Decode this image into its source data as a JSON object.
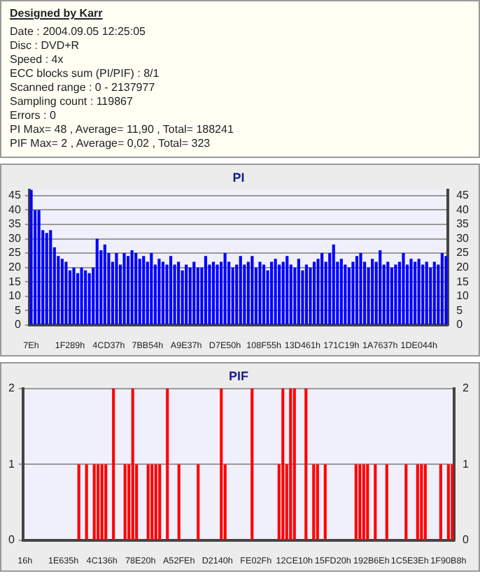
{
  "chart_data": [
    {
      "type": "other",
      "title": "Designed by Karr",
      "annotations": [
        "Date : 2004.09.05 12:25:05",
        "Disc : DVD+R",
        "Speed : 4x",
        "ECC blocks sum (PI/PIF) : 8/1",
        "Scanned range : 0 - 2137977",
        "Sampling count : 119867",
        "Errors : 0",
        "PI Max= 48 , Average= 11,90 , Total= 188241",
        "PIF Max= 2 , Average= 0,02 , Total= 323"
      ]
    },
    {
      "type": "bar",
      "title": "PI",
      "categories": [
        "7Eh",
        null,
        null,
        null,
        null,
        null,
        null,
        null,
        null,
        null,
        "1F289h",
        null,
        null,
        null,
        null,
        null,
        null,
        null,
        null,
        null,
        "4CD37h",
        null,
        null,
        null,
        null,
        null,
        null,
        null,
        null,
        null,
        "7BB54h",
        null,
        null,
        null,
        null,
        null,
        null,
        null,
        null,
        null,
        "A9E37h",
        null,
        null,
        null,
        null,
        null,
        null,
        null,
        null,
        null,
        "D7E50h",
        null,
        null,
        null,
        null,
        null,
        null,
        null,
        null,
        null,
        "108F55h",
        null,
        null,
        null,
        null,
        null,
        null,
        null,
        null,
        null,
        "13D461h",
        null,
        null,
        null,
        null,
        null,
        null,
        null,
        null,
        null,
        "171C19h",
        null,
        null,
        null,
        null,
        null,
        null,
        null,
        null,
        null,
        "1A7637h",
        null,
        null,
        null,
        null,
        null,
        null,
        null,
        null,
        null,
        "1DE044h",
        null,
        null,
        null,
        null,
        null,
        null,
        null
      ],
      "series": [
        {
          "color": "#0000ff",
          "values": [
            47,
            40,
            40,
            33,
            32,
            33,
            27,
            24,
            23,
            22,
            19,
            20,
            18,
            20,
            19,
            18,
            20,
            30,
            26,
            28,
            25,
            22,
            25,
            21,
            25,
            24,
            26,
            25,
            23,
            24,
            22,
            25,
            21,
            23,
            22,
            21,
            24,
            21,
            22,
            19,
            21,
            20,
            22,
            20,
            20,
            24,
            21,
            22,
            21,
            22,
            25,
            22,
            20,
            21,
            24,
            21,
            22,
            24,
            20,
            22,
            21,
            19,
            22,
            23,
            21,
            22,
            24,
            21,
            20,
            23,
            19,
            21,
            20,
            22,
            23,
            25,
            22,
            25,
            28,
            22,
            23,
            21,
            20,
            22,
            24,
            25,
            22,
            20,
            23,
            22,
            26,
            21,
            22,
            20,
            21,
            22,
            25,
            21,
            23,
            22,
            23,
            21,
            22,
            20,
            22,
            21,
            25,
            24
          ]
        }
      ],
      "ylim": [
        0,
        47
      ],
      "yticks": [
        0,
        5,
        10,
        15,
        20,
        25,
        30,
        35,
        40,
        45
      ],
      "y2lim": [
        0,
        47
      ],
      "y2ticks": [
        0,
        5,
        10,
        15,
        20,
        25,
        30,
        35,
        40,
        45
      ],
      "grid": "y"
    },
    {
      "type": "bar",
      "title": "PIF",
      "categories": [
        "16h",
        null,
        null,
        null,
        null,
        null,
        null,
        null,
        null,
        null,
        "1E635h",
        null,
        null,
        null,
        null,
        null,
        null,
        null,
        null,
        null,
        "4C136h",
        null,
        null,
        null,
        null,
        null,
        null,
        null,
        null,
        null,
        "78E20h",
        null,
        null,
        null,
        null,
        null,
        null,
        null,
        null,
        null,
        "A52FEh",
        null,
        null,
        null,
        null,
        null,
        null,
        null,
        null,
        null,
        "D2140h",
        null,
        null,
        null,
        null,
        null,
        null,
        null,
        null,
        null,
        "FE02Fh",
        null,
        null,
        null,
        null,
        null,
        null,
        null,
        null,
        null,
        "12CE10h",
        null,
        null,
        null,
        null,
        null,
        null,
        null,
        null,
        null,
        "15FD20h",
        null,
        null,
        null,
        null,
        null,
        null,
        null,
        null,
        null,
        "192B6Eh",
        null,
        null,
        null,
        null,
        null,
        null,
        null,
        null,
        null,
        "1C5E3Eh",
        null,
        null,
        null,
        null,
        null,
        null,
        null,
        null,
        null,
        "1F90B8h",
        null
      ],
      "series": [
        {
          "color": "#ff0000",
          "values": [
            0,
            0,
            0,
            0,
            0,
            0,
            0,
            0,
            0,
            0,
            0,
            0,
            0,
            0,
            1,
            0,
            1,
            0,
            1,
            1,
            1,
            1,
            0,
            2,
            0,
            0,
            1,
            1,
            2,
            1,
            0,
            0,
            1,
            1,
            1,
            1,
            0,
            2,
            0,
            0,
            1,
            0,
            0,
            0,
            0,
            1,
            0,
            0,
            0,
            0,
            0,
            2,
            1,
            0,
            0,
            0,
            0,
            0,
            0,
            2,
            0,
            0,
            0,
            0,
            0,
            0,
            1,
            2,
            1,
            2,
            2,
            0,
            0,
            2,
            0,
            1,
            1,
            0,
            1,
            0,
            0,
            0,
            0,
            0,
            0,
            0,
            1,
            1,
            1,
            1,
            0,
            1,
            0,
            0,
            1,
            0,
            0,
            0,
            0,
            1,
            0,
            0,
            1,
            1,
            1,
            0,
            0,
            0,
            1,
            0,
            1,
            1
          ]
        }
      ],
      "ylim": [
        0,
        2
      ],
      "yticks": [
        0,
        1,
        2
      ],
      "y2lim": [
        0,
        2
      ],
      "y2ticks": [
        0,
        1,
        2
      ],
      "grid": "y"
    }
  ]
}
